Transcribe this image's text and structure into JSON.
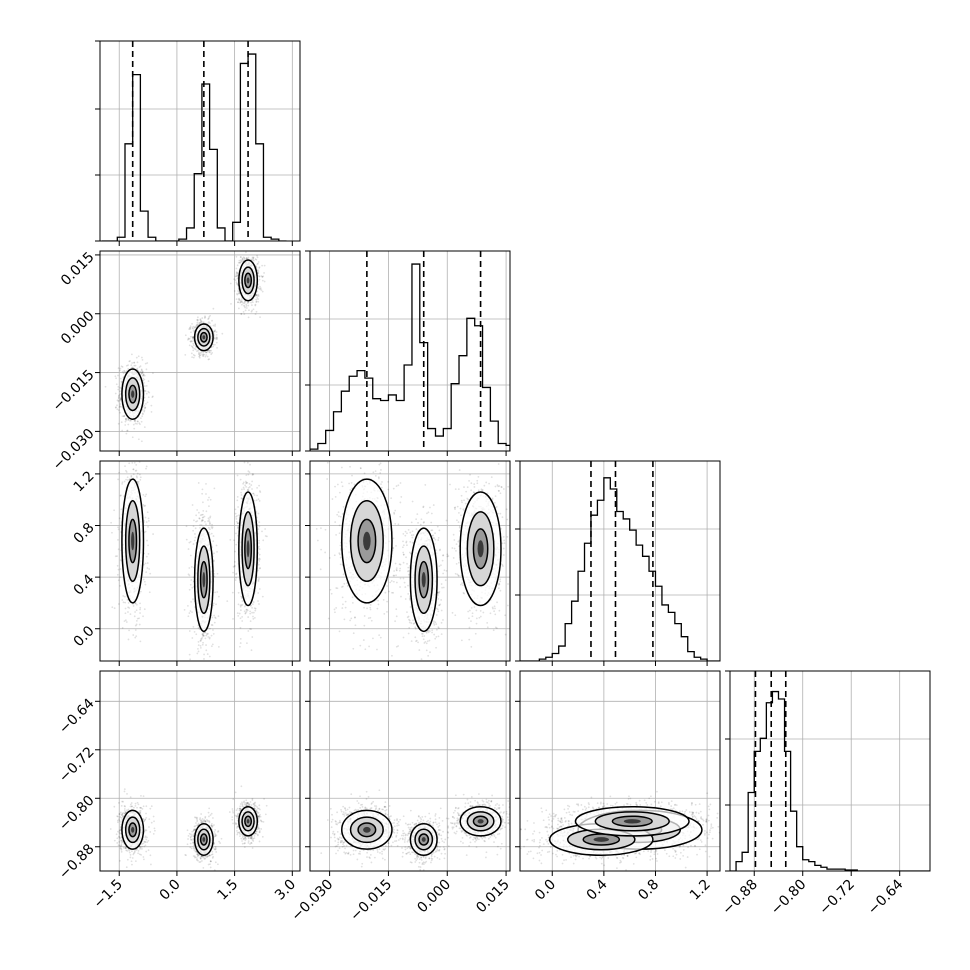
{
  "chart_data": {
    "type": "corner",
    "grid": true,
    "params": [
      {
        "range": [
          -2.0,
          3.2
        ],
        "ticks": [
          -1.5,
          0.0,
          1.5,
          3.0
        ],
        "tick_labels": [
          "−1.5",
          "0.0",
          "1.5",
          "3.0"
        ],
        "quantiles": [
          -1.15,
          0.7,
          1.85
        ]
      },
      {
        "range": [
          -0.035,
          0.016
        ],
        "ticks": [
          -0.03,
          -0.015,
          0.0,
          0.015
        ],
        "tick_labels": [
          "−0.030",
          "−0.015",
          "0.000",
          "0.015"
        ],
        "quantiles": [
          -0.0205,
          -0.006,
          0.0085
        ]
      },
      {
        "range": [
          -0.25,
          1.3
        ],
        "ticks": [
          0.0,
          0.4,
          0.8,
          1.2
        ],
        "tick_labels": [
          "0.0",
          "0.4",
          "0.8",
          "1.2"
        ],
        "quantiles": [
          0.3,
          0.49,
          0.78
        ]
      },
      {
        "range": [
          -0.92,
          -0.59
        ],
        "ticks": [
          -0.88,
          -0.8,
          -0.72,
          -0.64
        ],
        "tick_labels": [
          "−0.88",
          "−0.80",
          "−0.72",
          "−0.64"
        ],
        "quantiles": [
          -0.878,
          -0.852,
          -0.828
        ]
      }
    ],
    "histograms": [
      {
        "bin_edges": [
          -1.95,
          -1.75,
          -1.55,
          -1.35,
          -1.15,
          -0.95,
          -0.75,
          -0.55,
          -0.35,
          -0.15,
          0.05,
          0.25,
          0.45,
          0.65,
          0.85,
          1.05,
          1.25,
          1.45,
          1.65,
          1.85,
          2.05,
          2.25,
          2.45,
          2.65,
          2.85
        ],
        "counts": [
          0,
          0,
          0.02,
          0.52,
          0.89,
          0.16,
          0.02,
          0,
          0,
          0,
          0.01,
          0.07,
          0.36,
          0.84,
          0.49,
          0.07,
          0,
          0.1,
          0.95,
          1.0,
          0.52,
          0.02,
          0.01,
          0,
          0
        ]
      },
      {
        "bin_edges": [
          -0.035,
          -0.033,
          -0.031,
          -0.029,
          -0.027,
          -0.025,
          -0.023,
          -0.021,
          -0.019,
          -0.017,
          -0.015,
          -0.013,
          -0.011,
          -0.009,
          -0.007,
          -0.005,
          -0.003,
          -0.001,
          0.001,
          0.003,
          0.005,
          0.007,
          0.009,
          0.011,
          0.013,
          0.015,
          0.016
        ],
        "counts": [
          0.01,
          0.04,
          0.11,
          0.21,
          0.32,
          0.4,
          0.43,
          0.39,
          0.28,
          0.27,
          0.3,
          0.27,
          0.46,
          1.0,
          0.58,
          0.12,
          0.08,
          0.12,
          0.36,
          0.51,
          0.71,
          0.67,
          0.34,
          0.16,
          0.04,
          0.03
        ]
      },
      {
        "bin_edges": [
          -0.25,
          -0.15,
          -0.1,
          -0.05,
          0.0,
          0.05,
          0.1,
          0.15,
          0.2,
          0.25,
          0.3,
          0.35,
          0.4,
          0.45,
          0.5,
          0.55,
          0.6,
          0.65,
          0.7,
          0.75,
          0.8,
          0.85,
          0.9,
          0.95,
          1.0,
          1.05,
          1.1,
          1.15,
          1.2,
          1.3
        ],
        "counts": [
          0,
          0,
          0.01,
          0.02,
          0.04,
          0.08,
          0.2,
          0.32,
          0.48,
          0.63,
          0.78,
          0.86,
          0.98,
          0.92,
          0.8,
          0.76,
          0.7,
          0.62,
          0.56,
          0.48,
          0.4,
          0.3,
          0.26,
          0.2,
          0.13,
          0.05,
          0.02,
          0.01,
          0
        ]
      },
      {
        "bin_edges": [
          -0.92,
          -0.91,
          -0.9,
          -0.89,
          -0.88,
          -0.87,
          -0.86,
          -0.85,
          -0.84,
          -0.83,
          -0.82,
          -0.81,
          -0.8,
          -0.79,
          -0.78,
          -0.77,
          -0.76,
          -0.75,
          -0.73,
          -0.71,
          -0.68,
          -0.64,
          -0.6,
          -0.59
        ],
        "counts": [
          0,
          0.05,
          0.1,
          0.42,
          0.64,
          0.71,
          0.9,
          0.96,
          0.92,
          0.64,
          0.32,
          0.13,
          0.06,
          0.05,
          0.03,
          0.02,
          0.01,
          0.01,
          0.005,
          0,
          0,
          0,
          0
        ]
      }
    ],
    "clusters": [
      {
        "center": [
          -1.15,
          -0.0205,
          0.68,
          -0.852
        ],
        "sd": [
          0.14,
          0.0032,
          0.24,
          0.016
        ],
        "weight": 0.33
      },
      {
        "center": [
          0.7,
          -0.006,
          0.38,
          -0.868
        ],
        "sd": [
          0.12,
          0.0017,
          0.2,
          0.013
        ],
        "weight": 0.33
      },
      {
        "center": [
          1.85,
          0.0085,
          0.62,
          -0.838
        ],
        "sd": [
          0.12,
          0.0026,
          0.22,
          0.012
        ],
        "weight": 0.34
      }
    ]
  }
}
